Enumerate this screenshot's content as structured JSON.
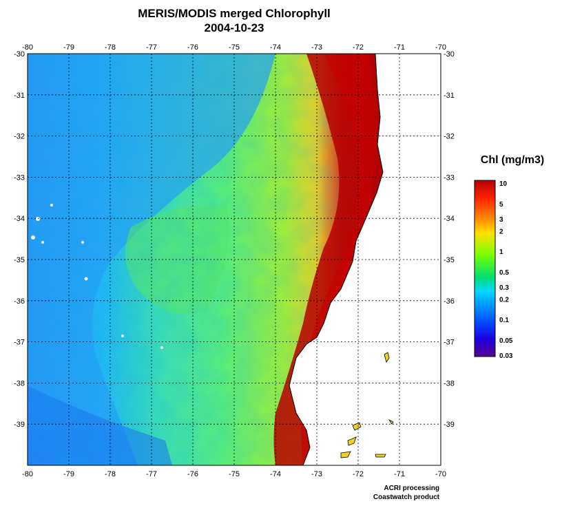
{
  "title": "MERIS/MODIS merged Chlorophyll",
  "date": "2004-10-23",
  "map": {
    "lon_range": [
      -80,
      -70
    ],
    "lat_range": [
      -40,
      -30
    ],
    "lon_ticks": [
      "-80",
      "-79",
      "-78",
      "-77",
      "-76",
      "-75",
      "-74",
      "-73",
      "-72",
      "-71",
      "-70"
    ],
    "lat_ticks": [
      "-30",
      "-31",
      "-32",
      "-33",
      "-34",
      "-35",
      "-36",
      "-37",
      "-38",
      "-39"
    ],
    "grid": true,
    "colors": {
      "land": "#ffffff",
      "grid": "#000000"
    }
  },
  "colorbar": {
    "label": "Chl (mg/m3)",
    "ticks": [
      "10",
      "5",
      "3",
      "2",
      "1",
      "0.5",
      "0.3",
      "0.2",
      "0.1",
      "0.05",
      "0.03"
    ],
    "colors": [
      "#b30000",
      "#ff2200",
      "#ff8c00",
      "#ffe000",
      "#7cff00",
      "#00e070",
      "#00d7ff",
      "#009fff",
      "#0050ff",
      "#1a00e0",
      "#5a0090"
    ]
  },
  "credits": {
    "line1": "ACRI processing",
    "line2": "Coastwatch product"
  }
}
